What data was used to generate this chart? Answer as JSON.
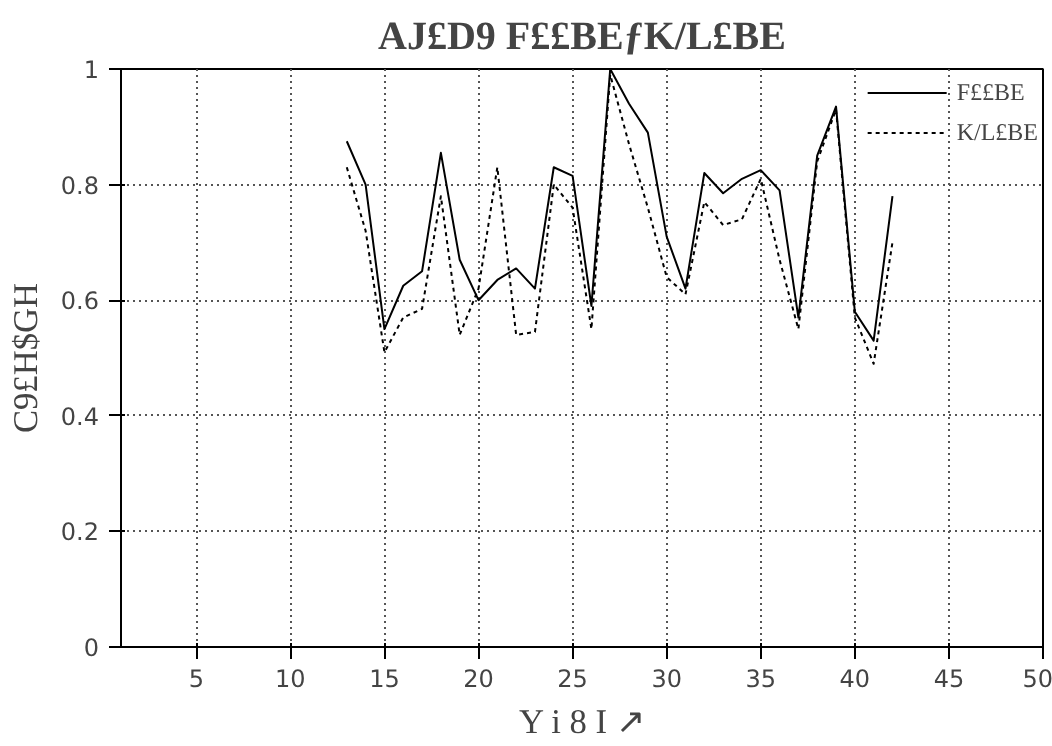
{
  "chart_data": {
    "type": "line",
    "title": "AJ£D9 F££BEƒK/L£BE",
    "xlabel": "Y i 8 I ↗",
    "ylabel": "C9£H$GH",
    "x": [
      13,
      14,
      15,
      16,
      17,
      18,
      19,
      20,
      21,
      22,
      23,
      24,
      25,
      26,
      27,
      28,
      29,
      30,
      31,
      32,
      33,
      34,
      35,
      36,
      37,
      38,
      39,
      40,
      41,
      42
    ],
    "series": [
      {
        "name": "F££BE",
        "color": "#000000",
        "line_style": "solid",
        "values": [
          0.875,
          0.8,
          0.55,
          0.625,
          0.65,
          0.855,
          0.67,
          0.6,
          0.635,
          0.655,
          0.62,
          0.83,
          0.815,
          0.59,
          1.0,
          0.94,
          0.89,
          0.71,
          0.62,
          0.82,
          0.785,
          0.81,
          0.825,
          0.79,
          0.57,
          0.85,
          0.935,
          0.58,
          0.53,
          0.78
        ]
      },
      {
        "name": "K/L£BE",
        "color": "#000000",
        "line_style": "dotted",
        "values": [
          0.83,
          0.72,
          0.51,
          0.57,
          0.585,
          0.78,
          0.54,
          0.62,
          0.83,
          0.54,
          0.545,
          0.8,
          0.76,
          0.55,
          0.99,
          0.87,
          0.76,
          0.64,
          0.61,
          0.77,
          0.73,
          0.74,
          0.81,
          0.67,
          0.55,
          0.84,
          0.93,
          0.57,
          0.49,
          0.7
        ]
      }
    ],
    "xlim": [
      1,
      50
    ],
    "ylim": [
      0,
      1
    ],
    "xticks": [
      5,
      10,
      15,
      20,
      25,
      30,
      35,
      40,
      45,
      50
    ],
    "yticks": [
      0,
      0.2,
      0.4,
      0.6,
      0.8,
      1
    ],
    "grid": true,
    "legend": "top right"
  }
}
